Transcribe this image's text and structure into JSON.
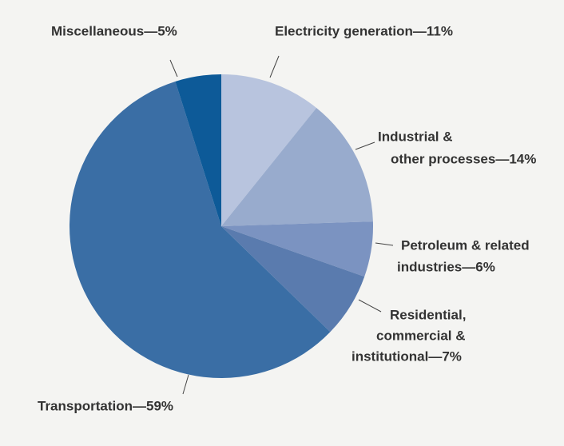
{
  "chart_data": {
    "type": "pie",
    "values": [
      11,
      14,
      6,
      7,
      59,
      5
    ],
    "value_labels": [
      [
        "Electricity generation—11%"
      ],
      [
        "Industrial &",
        "other processes—14%"
      ],
      [
        "Petroleum & related",
        "industries—6%"
      ],
      [
        "Residential,",
        "commercial &",
        "institutional—7%"
      ],
      [
        "Transportation—59%"
      ],
      [
        "Miscellaneous—5%"
      ]
    ],
    "colors": [
      "#b8c4de",
      "#98abcd",
      "#7b93c1",
      "#5a7bae",
      "#3a6ea5",
      "#0d5a98"
    ]
  }
}
